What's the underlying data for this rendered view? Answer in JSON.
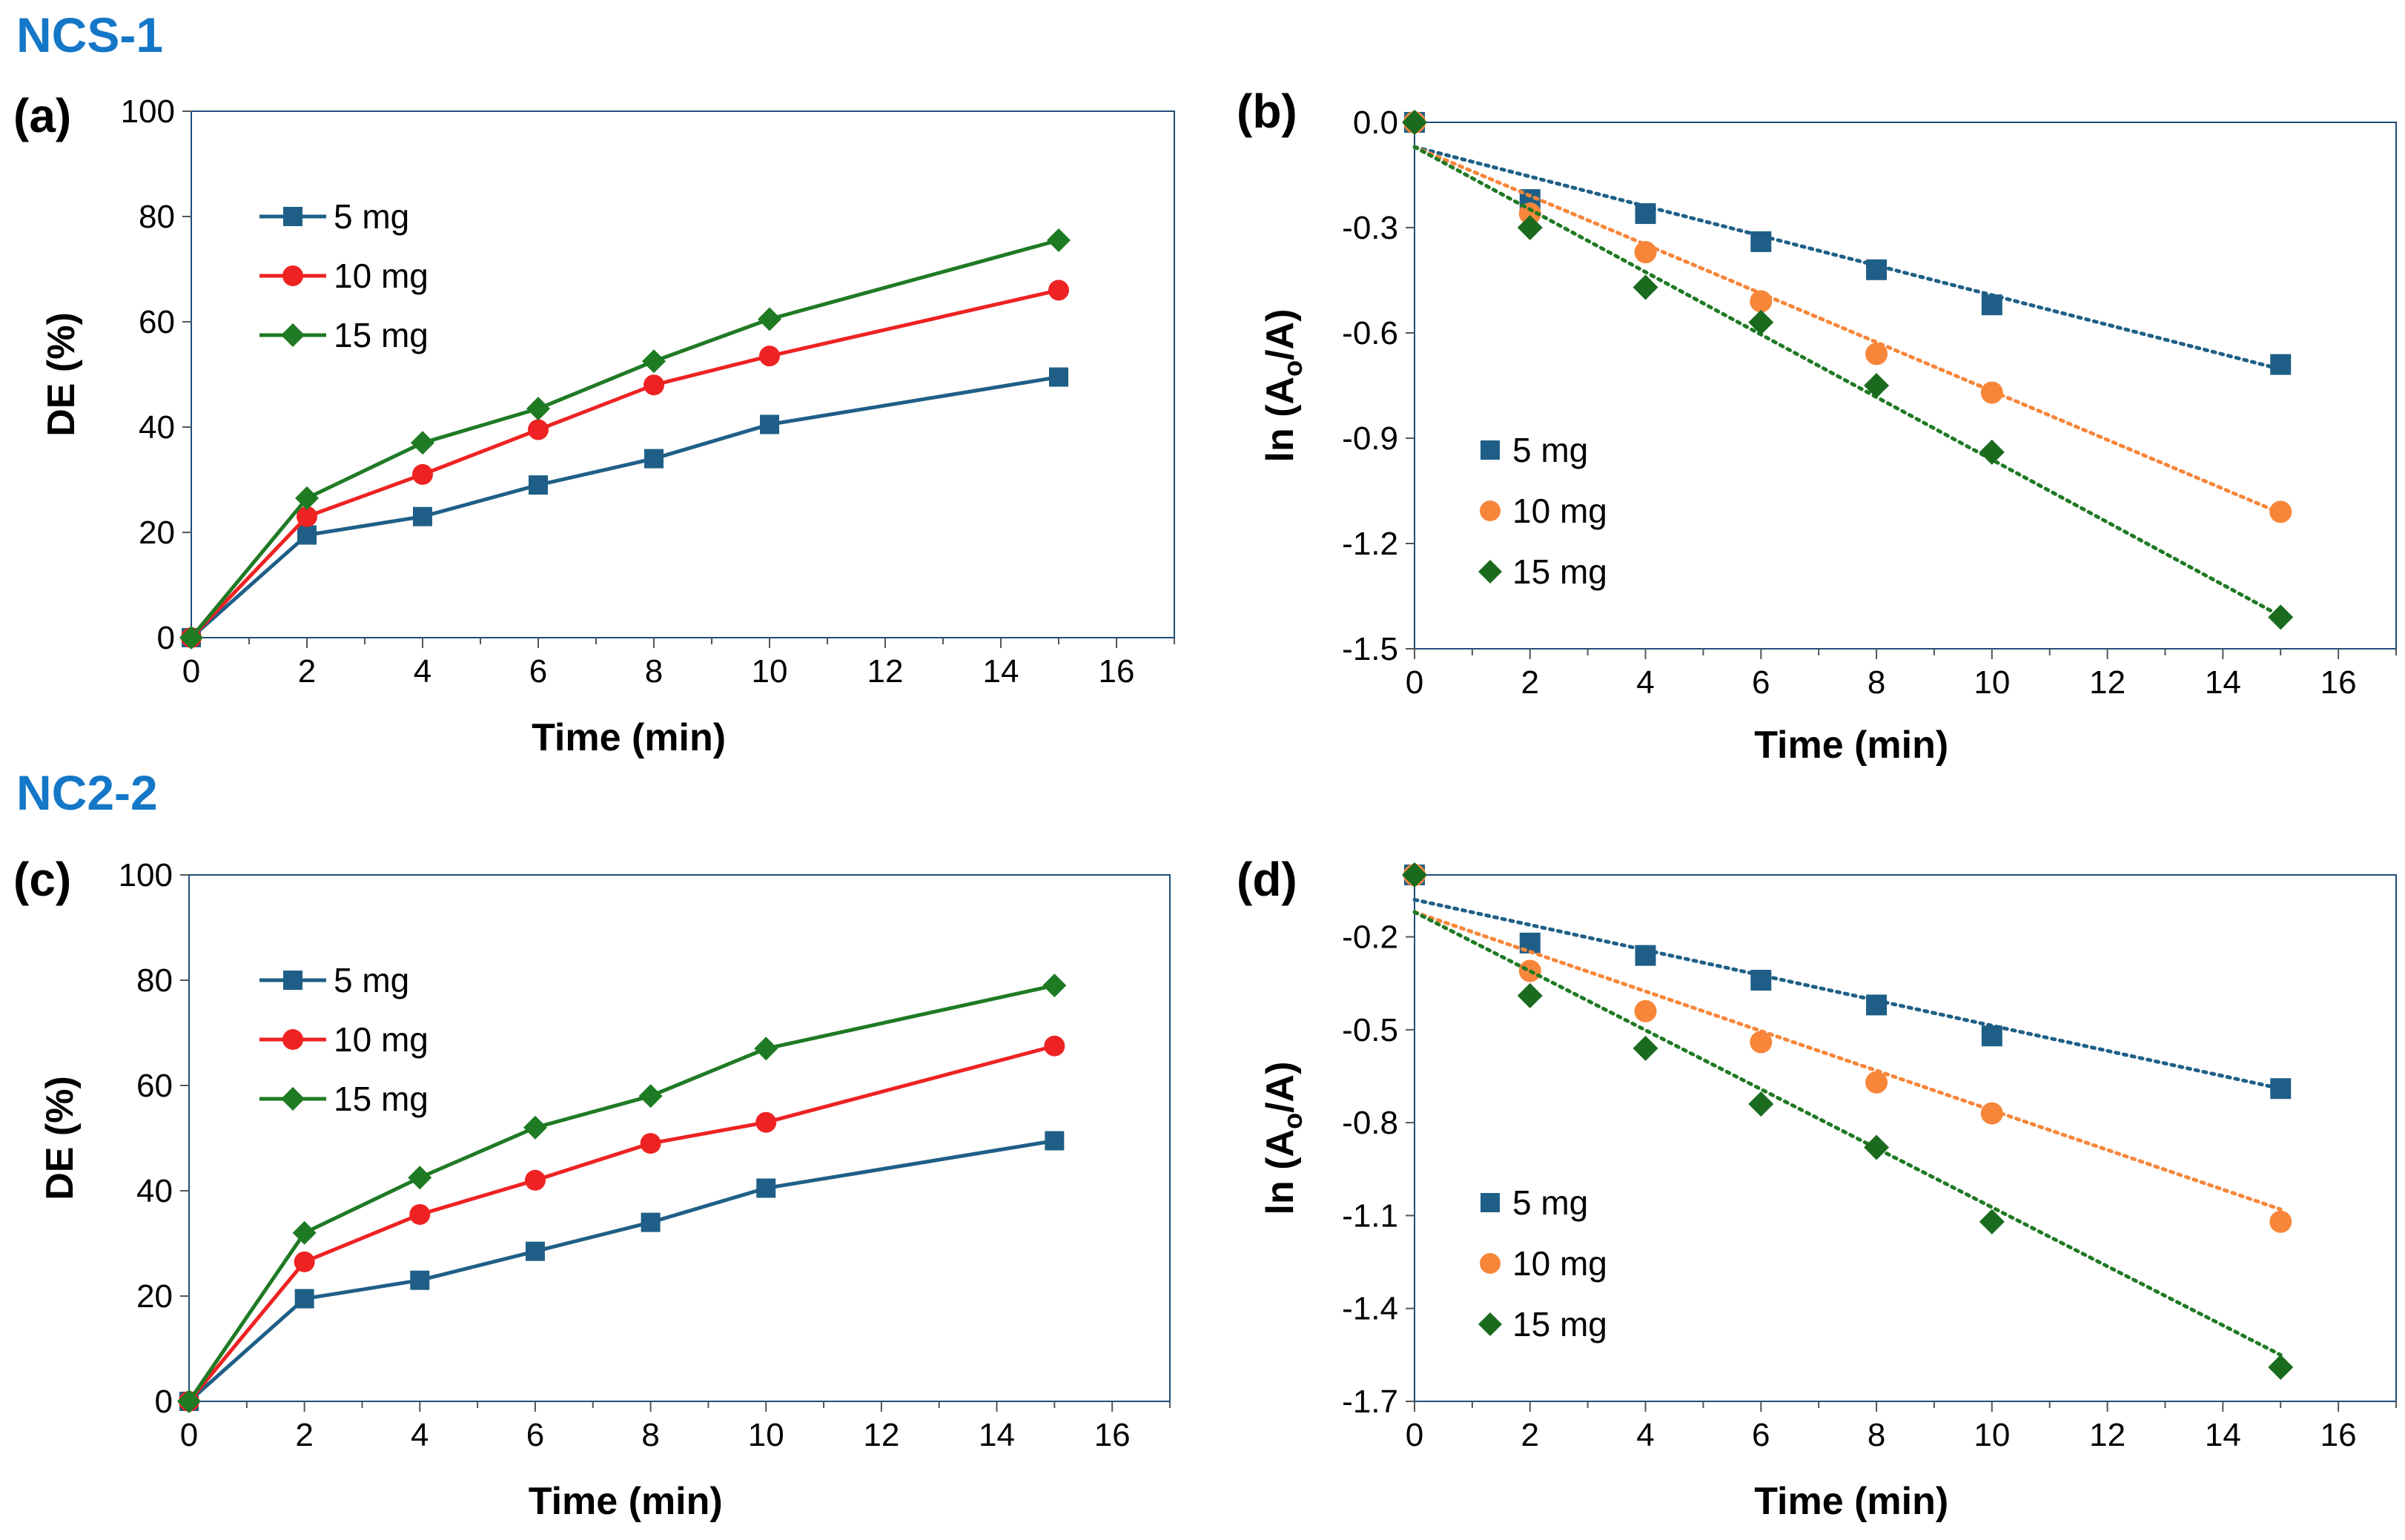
{
  "figure": {
    "accent_color": "#1477c8",
    "group_titles": [
      "NCS-1",
      "NC2-2"
    ]
  },
  "series_colors": {
    "5 mg": "#1f5f87",
    "10 mg_line": "#ee2222",
    "10 mg_marker": "#f7863a",
    "10 mg_trend": "#f7863a",
    "15 mg": "#1f7a24",
    "15 mg_marker": "#1b6b1f"
  },
  "chart_data": [
    {
      "id": "a",
      "panel_label": "(a)",
      "type": "line",
      "xlabel": "Time (min)",
      "ylabel": "DE (%)",
      "xlim": [
        0,
        17
      ],
      "ylim": [
        0,
        100
      ],
      "xticks": [
        0,
        2,
        4,
        6,
        8,
        10,
        12,
        14,
        16
      ],
      "yticks": [
        0,
        20,
        40,
        60,
        80,
        100
      ],
      "yticklabels": [
        "0",
        "20",
        "40",
        "60",
        "80",
        "100"
      ],
      "x": [
        0,
        2,
        4,
        6,
        8,
        10,
        15
      ],
      "legend": [
        "5 mg",
        "10 mg",
        "15 mg"
      ],
      "series": [
        {
          "name": "5 mg",
          "marker": "square",
          "values": [
            0,
            19.5,
            23,
            29,
            34,
            40.5,
            49.5
          ]
        },
        {
          "name": "10 mg",
          "marker": "circle",
          "values": [
            0,
            23,
            31,
            39.5,
            48,
            53.5,
            66
          ]
        },
        {
          "name": "15 mg",
          "marker": "diamond",
          "values": [
            0,
            26.5,
            37,
            43.5,
            52.5,
            60.5,
            75.5
          ]
        }
      ]
    },
    {
      "id": "b",
      "panel_label": "(b)",
      "type": "scatter",
      "xlabel": "Time (min)",
      "ylabel_main": "ln (A",
      "ylabel_sub": "o",
      "ylabel_end": "/A)",
      "xlim": [
        0,
        17
      ],
      "ylim": [
        -1.5,
        0.0
      ],
      "xticks": [
        0,
        2,
        4,
        6,
        8,
        10,
        12,
        14,
        16
      ],
      "yticks": [
        0.0,
        -0.3,
        -0.6,
        -0.9,
        -1.2,
        -1.5
      ],
      "yticklabels": [
        "0.0",
        "-0.3",
        "-0.6",
        "-0.9",
        "-1.2",
        "-1.5"
      ],
      "x": [
        0,
        2,
        4,
        6,
        8,
        10,
        15
      ],
      "legend": [
        "5 mg",
        "10 mg",
        "15 mg"
      ],
      "series": [
        {
          "name": "5 mg",
          "marker": "square",
          "values": [
            0,
            -0.22,
            -0.26,
            -0.34,
            -0.42,
            -0.52,
            -0.69
          ],
          "trend": [
            -0.07,
            -0.04222
          ]
        },
        {
          "name": "10 mg",
          "marker": "circle",
          "values": [
            0,
            -0.26,
            -0.37,
            -0.51,
            -0.66,
            -0.77,
            -1.11
          ],
          "trend": [
            -0.07,
            -0.06956
          ]
        },
        {
          "name": "15 mg",
          "marker": "diamond",
          "values": [
            0,
            -0.3,
            -0.47,
            -0.57,
            -0.75,
            -0.94,
            -1.41
          ],
          "trend": [
            -0.07,
            -0.08911
          ]
        }
      ]
    },
    {
      "id": "c",
      "panel_label": "(c)",
      "type": "line",
      "xlabel": "Time (min)",
      "ylabel": "DE (%)",
      "xlim": [
        0,
        17
      ],
      "ylim": [
        0,
        100
      ],
      "xticks": [
        0,
        2,
        4,
        6,
        8,
        10,
        12,
        14,
        16
      ],
      "yticks": [
        0,
        20,
        40,
        60,
        80,
        100
      ],
      "yticklabels": [
        "0",
        "20",
        "40",
        "60",
        "80",
        "100"
      ],
      "x": [
        0,
        2,
        4,
        6,
        8,
        10,
        15
      ],
      "legend": [
        "5 mg",
        "10 mg",
        "15 mg"
      ],
      "series": [
        {
          "name": "5 mg",
          "marker": "square",
          "values": [
            0,
            19.5,
            23,
            28.5,
            34,
            40.5,
            49.5
          ]
        },
        {
          "name": "10 mg",
          "marker": "circle",
          "values": [
            0,
            26.5,
            35.5,
            42,
            49,
            53,
            67.5
          ]
        },
        {
          "name": "15 mg",
          "marker": "diamond",
          "values": [
            0,
            32,
            42.5,
            52,
            58,
            67,
            79
          ]
        }
      ]
    },
    {
      "id": "d",
      "panel_label": "(d)",
      "type": "scatter",
      "xlabel": "Time (min)",
      "ylabel_main": "ln (A",
      "ylabel_sub": "o",
      "ylabel_end": "/A)",
      "xlim": [
        0,
        17
      ],
      "ylim": [
        -1.7,
        0.0
      ],
      "xticks": [
        0,
        2,
        4,
        6,
        8,
        10,
        12,
        14,
        16
      ],
      "yticks": [
        -0.2,
        -0.5,
        -0.8,
        -1.1,
        -1.4,
        -1.7
      ],
      "yticklabels": [
        "-0.2",
        "-0.5",
        "-0.8",
        "-1.1",
        "-1.4",
        "-1.7"
      ],
      "x": [
        0,
        2,
        4,
        6,
        8,
        10,
        15
      ],
      "legend": [
        "5 mg",
        "10 mg",
        "15 mg"
      ],
      "series": [
        {
          "name": "5 mg",
          "marker": "square",
          "values": [
            0,
            -0.22,
            -0.26,
            -0.34,
            -0.42,
            -0.52,
            -0.69
          ],
          "trend": [
            -0.08,
            -0.04067
          ]
        },
        {
          "name": "10 mg",
          "marker": "circle",
          "values": [
            0,
            -0.31,
            -0.44,
            -0.54,
            -0.67,
            -0.77,
            -1.12
          ],
          "trend": [
            -0.12,
            -0.064
          ]
        },
        {
          "name": "15 mg",
          "marker": "diamond",
          "values": [
            0,
            -0.39,
            -0.56,
            -0.74,
            -0.88,
            -1.12,
            -1.59
          ],
          "trend": [
            -0.12,
            -0.09533
          ]
        }
      ]
    }
  ]
}
